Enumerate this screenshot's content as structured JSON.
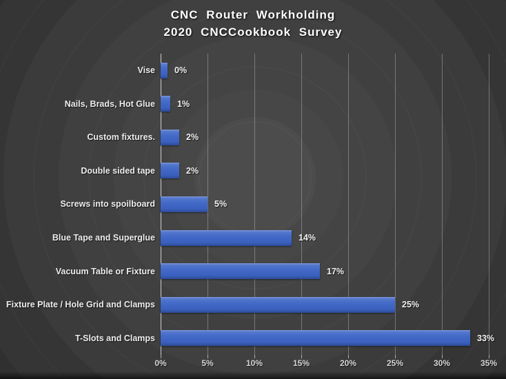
{
  "title": {
    "line1": "CNC Router Workholding",
    "line2": "2020 CNCCookbook Survey"
  },
  "chart_data": {
    "type": "bar",
    "orientation": "horizontal",
    "title": "CNC Router Workholding 2020 CNCCookbook Survey",
    "categories": [
      "Vise",
      "Nails, Brads, Hot Glue",
      "Custom fixtures.",
      "Double sided tape",
      "Screws into spoilboard",
      "Blue Tape and Superglue",
      "Vacuum Table or Fixture",
      "Fixture Plate / Hole Grid and Clamps",
      "T-Slots and Clamps"
    ],
    "values": [
      0,
      1,
      2,
      2,
      5,
      14,
      17,
      25,
      33
    ],
    "data_labels": [
      "0%",
      "1%",
      "2%",
      "2%",
      "5%",
      "14%",
      "17%",
      "25%",
      "33%"
    ],
    "x_ticks": [
      "0%",
      "5%",
      "10%",
      "15%",
      "20%",
      "25%",
      "30%",
      "35%"
    ],
    "x_tick_values": [
      0,
      5,
      10,
      15,
      20,
      25,
      30,
      35
    ],
    "xlim": [
      0,
      35
    ],
    "grid": true,
    "legend": false,
    "bar_color": "#4472C4",
    "bar_gradient_top": "#7E97DA",
    "bar_gradient_bottom": "#294795",
    "background_color": "#333333",
    "text_color": "#F2F2F2",
    "gridline_color": "#D9D9D9"
  }
}
